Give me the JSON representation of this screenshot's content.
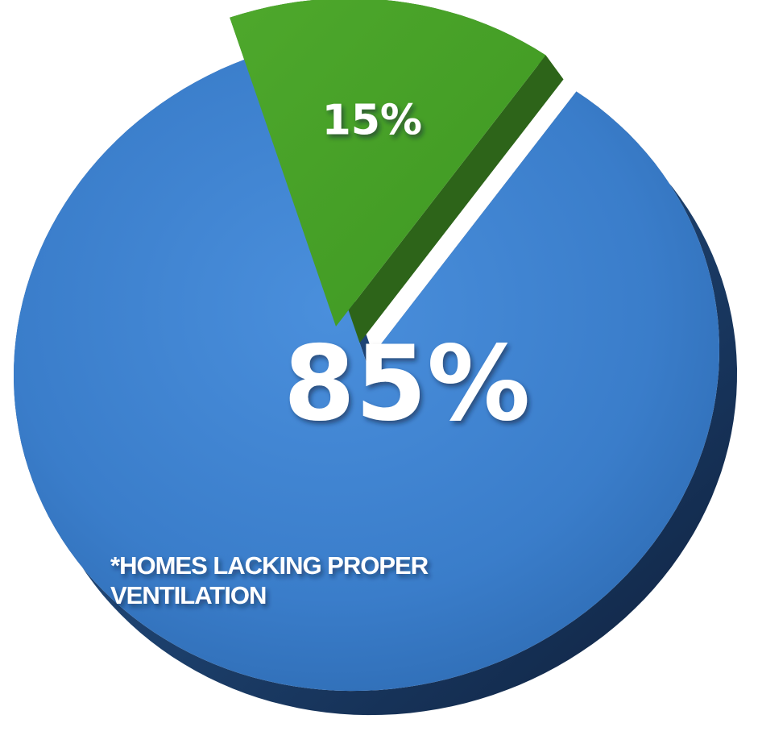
{
  "chart_data": {
    "type": "pie",
    "slices": [
      {
        "label": "85%",
        "value": 85,
        "color": "#3e82cf"
      },
      {
        "label": "15%",
        "value": 15,
        "color": "#45a12a"
      }
    ],
    "annotation": [
      "*HOMES LACKING PROPER",
      "VENTILATION"
    ],
    "legend": "none"
  }
}
